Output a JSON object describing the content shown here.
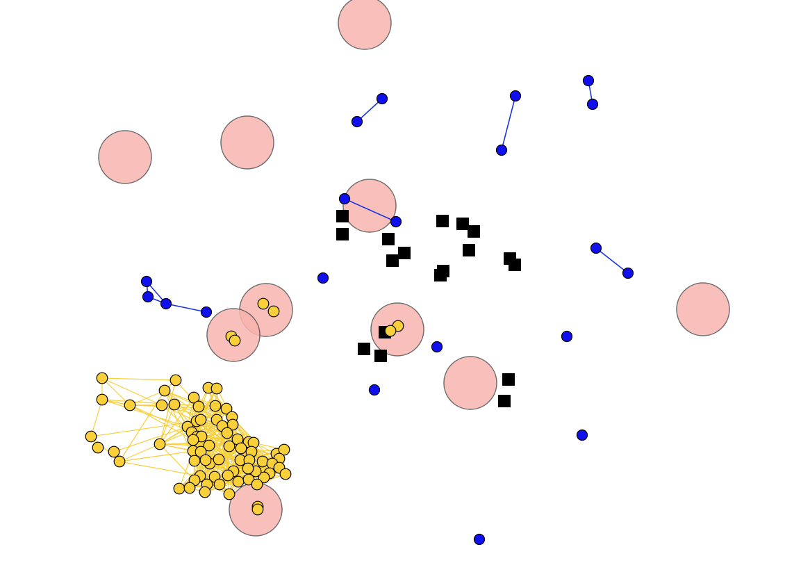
{
  "colors": {
    "background": "#ffffff",
    "big_circle_fill": "#f8b4ae",
    "blue_node_fill": "#1010ee",
    "blue_edge": "#1a36e0",
    "yellow_node_fill": "#f9d03a",
    "yellow_edge": "#f7cf3c",
    "black_node_fill": "#000000"
  },
  "legend_text": []
}
